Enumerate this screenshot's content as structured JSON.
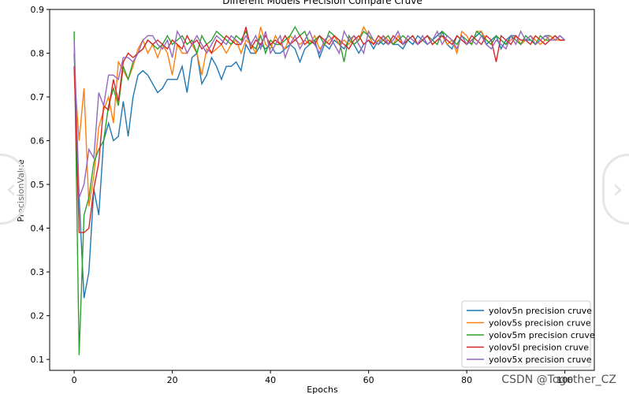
{
  "chart_data": {
    "type": "line",
    "title": "Different Models Precision Compare Cruve",
    "xlabel": "Epochs",
    "ylabel": "PrecisionValue",
    "xlim": [
      -5,
      106
    ],
    "ylim": [
      0.075,
      0.9
    ],
    "xticks": [
      0,
      20,
      40,
      60,
      80,
      100
    ],
    "yticks": [
      0.1,
      0.2,
      0.3,
      0.4,
      0.5,
      0.6,
      0.7,
      0.8,
      0.9
    ],
    "legend_position": "lower-right",
    "grid": false,
    "series": [
      {
        "name": "yolov5n precision cruve",
        "color": "#1f77b4",
        "values": [
          0.8,
          0.47,
          0.24,
          0.3,
          0.49,
          0.43,
          0.6,
          0.64,
          0.6,
          0.61,
          0.69,
          0.61,
          0.7,
          0.75,
          0.76,
          0.75,
          0.73,
          0.71,
          0.72,
          0.74,
          0.74,
          0.74,
          0.77,
          0.71,
          0.79,
          0.8,
          0.73,
          0.75,
          0.79,
          0.77,
          0.74,
          0.77,
          0.77,
          0.78,
          0.76,
          0.82,
          0.8,
          0.8,
          0.82,
          0.81,
          0.82,
          0.8,
          0.8,
          0.81,
          0.82,
          0.81,
          0.78,
          0.81,
          0.82,
          0.83,
          0.79,
          0.82,
          0.81,
          0.83,
          0.82,
          0.81,
          0.83,
          0.82,
          0.8,
          0.82,
          0.83,
          0.81,
          0.83,
          0.82,
          0.83,
          0.82,
          0.82,
          0.81,
          0.83,
          0.82,
          0.84,
          0.83,
          0.82,
          0.83,
          0.84,
          0.85,
          0.82,
          0.81,
          0.84,
          0.83,
          0.82,
          0.83,
          0.84,
          0.85,
          0.82,
          0.83,
          0.84,
          0.81,
          0.83,
          0.84,
          0.84,
          0.82,
          0.83,
          0.83,
          0.82,
          0.83,
          0.84,
          0.84,
          0.83,
          0.84,
          0.83
        ]
      },
      {
        "name": "yolov5s precision cruve",
        "color": "#ff7f0e",
        "values": [
          0.76,
          0.6,
          0.72,
          0.45,
          0.52,
          0.63,
          0.67,
          0.7,
          0.64,
          0.78,
          0.76,
          0.74,
          0.77,
          0.81,
          0.83,
          0.8,
          0.82,
          0.79,
          0.82,
          0.8,
          0.75,
          0.82,
          0.8,
          0.8,
          0.82,
          0.8,
          0.75,
          0.81,
          0.8,
          0.81,
          0.82,
          0.8,
          0.82,
          0.83,
          0.8,
          0.83,
          0.82,
          0.8,
          0.86,
          0.82,
          0.81,
          0.84,
          0.82,
          0.81,
          0.84,
          0.83,
          0.82,
          0.83,
          0.82,
          0.84,
          0.81,
          0.82,
          0.83,
          0.84,
          0.82,
          0.83,
          0.82,
          0.84,
          0.83,
          0.86,
          0.84,
          0.82,
          0.83,
          0.84,
          0.83,
          0.82,
          0.84,
          0.82,
          0.83,
          0.84,
          0.82,
          0.83,
          0.84,
          0.82,
          0.83,
          0.84,
          0.82,
          0.83,
          0.8,
          0.85,
          0.84,
          0.82,
          0.85,
          0.85,
          0.83,
          0.82,
          0.84,
          0.83,
          0.82,
          0.83,
          0.84,
          0.82,
          0.83,
          0.84,
          0.83,
          0.82,
          0.83,
          0.84,
          0.83,
          0.83,
          0.83
        ]
      },
      {
        "name": "yolov5m precision cruve",
        "color": "#2ca02c",
        "values": [
          0.85,
          0.11,
          0.43,
          0.47,
          0.55,
          0.58,
          0.6,
          0.68,
          0.72,
          0.68,
          0.77,
          0.74,
          0.78,
          0.8,
          0.81,
          0.83,
          0.82,
          0.81,
          0.82,
          0.84,
          0.82,
          0.83,
          0.84,
          0.82,
          0.83,
          0.8,
          0.84,
          0.82,
          0.83,
          0.85,
          0.84,
          0.83,
          0.82,
          0.84,
          0.83,
          0.85,
          0.82,
          0.81,
          0.84,
          0.8,
          0.83,
          0.82,
          0.82,
          0.83,
          0.84,
          0.86,
          0.84,
          0.85,
          0.82,
          0.83,
          0.84,
          0.82,
          0.85,
          0.84,
          0.83,
          0.78,
          0.84,
          0.82,
          0.83,
          0.85,
          0.84,
          0.83,
          0.82,
          0.83,
          0.84,
          0.82,
          0.83,
          0.84,
          0.83,
          0.84,
          0.82,
          0.83,
          0.84,
          0.83,
          0.82,
          0.85,
          0.84,
          0.83,
          0.82,
          0.84,
          0.83,
          0.82,
          0.85,
          0.84,
          0.83,
          0.82,
          0.84,
          0.83,
          0.82,
          0.84,
          0.83,
          0.82,
          0.84,
          0.83,
          0.82,
          0.84,
          0.83,
          0.83,
          0.84,
          0.83,
          0.83
        ]
      },
      {
        "name": "yolov5l precision cruve",
        "color": "#d62728",
        "values": [
          0.77,
          0.39,
          0.39,
          0.4,
          0.49,
          0.55,
          0.68,
          0.67,
          0.74,
          0.69,
          0.78,
          0.8,
          0.79,
          0.8,
          0.81,
          0.83,
          0.82,
          0.83,
          0.82,
          0.81,
          0.83,
          0.82,
          0.81,
          0.84,
          0.82,
          0.83,
          0.81,
          0.82,
          0.8,
          0.83,
          0.82,
          0.84,
          0.83,
          0.82,
          0.82,
          0.86,
          0.81,
          0.83,
          0.82,
          0.84,
          0.82,
          0.83,
          0.82,
          0.84,
          0.82,
          0.83,
          0.84,
          0.82,
          0.83,
          0.82,
          0.84,
          0.83,
          0.82,
          0.84,
          0.83,
          0.82,
          0.81,
          0.83,
          0.84,
          0.82,
          0.83,
          0.82,
          0.84,
          0.83,
          0.82,
          0.84,
          0.83,
          0.82,
          0.83,
          0.84,
          0.82,
          0.83,
          0.84,
          0.82,
          0.83,
          0.84,
          0.83,
          0.82,
          0.84,
          0.83,
          0.82,
          0.84,
          0.83,
          0.82,
          0.84,
          0.83,
          0.78,
          0.84,
          0.83,
          0.82,
          0.84,
          0.83,
          0.83,
          0.82,
          0.84,
          0.83,
          0.82,
          0.83,
          0.84,
          0.83,
          0.83
        ]
      },
      {
        "name": "yolov5x precision cruve",
        "color": "#9467bd",
        "values": [
          0.83,
          0.47,
          0.5,
          0.58,
          0.56,
          0.71,
          0.68,
          0.75,
          0.75,
          0.74,
          0.79,
          0.79,
          0.78,
          0.8,
          0.83,
          0.84,
          0.84,
          0.82,
          0.81,
          0.83,
          0.79,
          0.85,
          0.83,
          0.8,
          0.82,
          0.84,
          0.82,
          0.8,
          0.82,
          0.84,
          0.83,
          0.82,
          0.84,
          0.83,
          0.82,
          0.84,
          0.82,
          0.84,
          0.81,
          0.85,
          0.8,
          0.82,
          0.84,
          0.79,
          0.82,
          0.84,
          0.81,
          0.83,
          0.85,
          0.82,
          0.8,
          0.83,
          0.84,
          0.82,
          0.8,
          0.85,
          0.83,
          0.84,
          0.82,
          0.8,
          0.85,
          0.83,
          0.82,
          0.84,
          0.82,
          0.83,
          0.85,
          0.82,
          0.84,
          0.83,
          0.82,
          0.84,
          0.82,
          0.83,
          0.85,
          0.82,
          0.84,
          0.83,
          0.81,
          0.84,
          0.82,
          0.83,
          0.82,
          0.84,
          0.82,
          0.81,
          0.83,
          0.82,
          0.81,
          0.84,
          0.82,
          0.85,
          0.83,
          0.84,
          0.82,
          0.83,
          0.84,
          0.83,
          0.83,
          0.84,
          0.83
        ]
      }
    ]
  },
  "watermark": "CSDN @Together_CZ"
}
